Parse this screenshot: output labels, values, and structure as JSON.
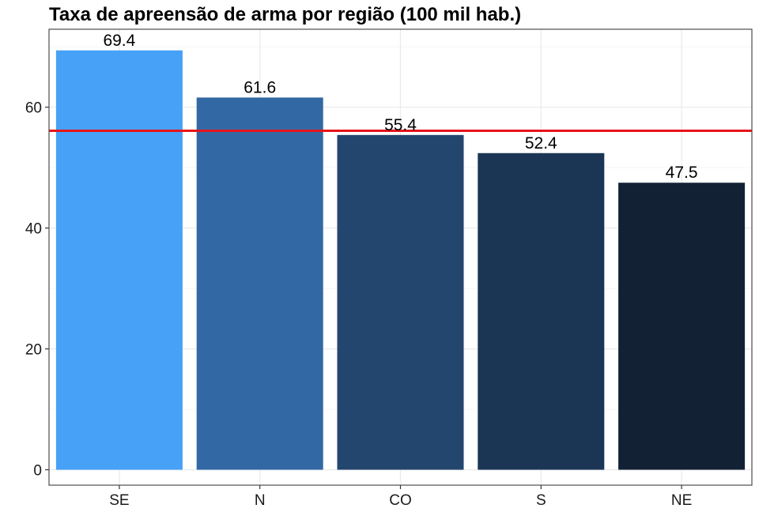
{
  "chart_data": {
    "type": "bar",
    "title": "Taxa de apreensão de arma por região (100 mil hab.)",
    "xlabel": "",
    "ylabel": "",
    "categories": [
      "SE",
      "N",
      "CO",
      "S",
      "NE"
    ],
    "values": [
      69.4,
      61.6,
      55.4,
      52.4,
      47.5
    ],
    "data_labels": [
      "69.4",
      "61.6",
      "55.4",
      "52.4",
      "47.5"
    ],
    "bar_colors": [
      "#47a1f7",
      "#3269a4",
      "#23466f",
      "#1b3655",
      "#122134"
    ],
    "y_ticks": [
      0,
      20,
      40,
      60
    ],
    "y_tick_labels": [
      "0",
      "20",
      "40",
      "60"
    ],
    "ylim": [
      0,
      72.9
    ],
    "reference_line": {
      "value": 56.1,
      "color": "#e8131a"
    },
    "grid": true,
    "legend": "none",
    "theme": {
      "panel_border": "#4d4d4d",
      "grid_major": "#ebebeb",
      "grid_minor": "#f5f5f5"
    }
  }
}
